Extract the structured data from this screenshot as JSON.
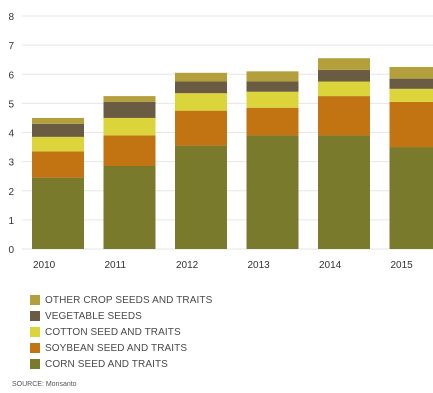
{
  "chart_data": {
    "type": "bar",
    "stacked": true,
    "categories": [
      "2010",
      "2011",
      "2012",
      "2013",
      "2014",
      "2015"
    ],
    "series": [
      {
        "name": "CORN SEED AND TRAITS",
        "color": "#7a7a2c",
        "values": [
          2.45,
          2.85,
          3.55,
          3.9,
          3.9,
          3.5
        ]
      },
      {
        "name": "SOYBEAN SEED AND TRAITS",
        "color": "#c27412",
        "values": [
          0.9,
          1.05,
          1.2,
          0.95,
          1.35,
          1.55
        ]
      },
      {
        "name": "COTTON SEED AND TRAITS",
        "color": "#dbd43a",
        "values": [
          0.5,
          0.6,
          0.6,
          0.55,
          0.5,
          0.45
        ]
      },
      {
        "name": "VEGETABLE SEEDS",
        "color": "#6a5b43",
        "values": [
          0.45,
          0.55,
          0.4,
          0.35,
          0.4,
          0.35
        ]
      },
      {
        "name": "OTHER CROP SEEDS AND TRAITS",
        "color": "#b3a03c",
        "values": [
          0.2,
          0.2,
          0.3,
          0.35,
          0.4,
          0.4
        ]
      }
    ],
    "yticks": [
      "0",
      "1",
      "2",
      "3",
      "4",
      "5",
      "6",
      "7",
      "8"
    ],
    "ylim": [
      0,
      8
    ],
    "grid": true,
    "legend_position": "bottom-left"
  },
  "source": "SOURCE: Monsanto"
}
